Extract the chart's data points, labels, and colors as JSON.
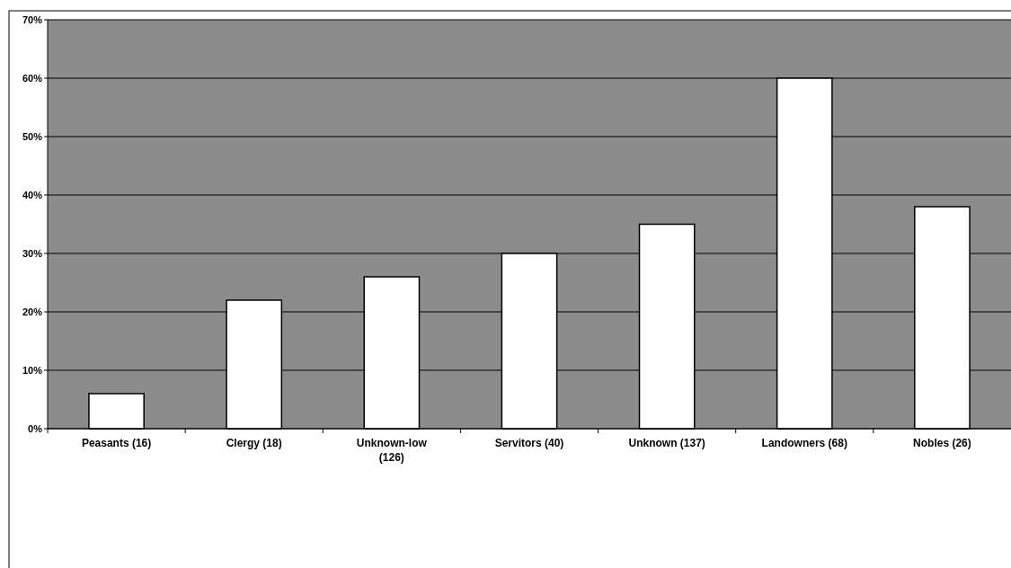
{
  "chart_data": {
    "type": "bar",
    "categories": [
      "Peasants (16)",
      "Clergy (18)",
      "Unknown-low (126)",
      "Servitors (40)",
      "Unknown (137)",
      "Landowners (68)",
      "Nobles (26)"
    ],
    "values": [
      6,
      22,
      26,
      30,
      35,
      60,
      38
    ],
    "color": "#ffffff",
    "ylim": [
      0,
      70
    ],
    "yticks": [
      {
        "value": 0,
        "label": "0%"
      },
      {
        "value": 10,
        "label": "10%"
      },
      {
        "value": 20,
        "label": "20%"
      },
      {
        "value": 30,
        "label": "30%"
      },
      {
        "value": 40,
        "label": "40%"
      },
      {
        "value": 50,
        "label": "50%"
      },
      {
        "value": 60,
        "label": "60%"
      },
      {
        "value": 70,
        "label": "70%"
      }
    ],
    "grid": "y"
  }
}
